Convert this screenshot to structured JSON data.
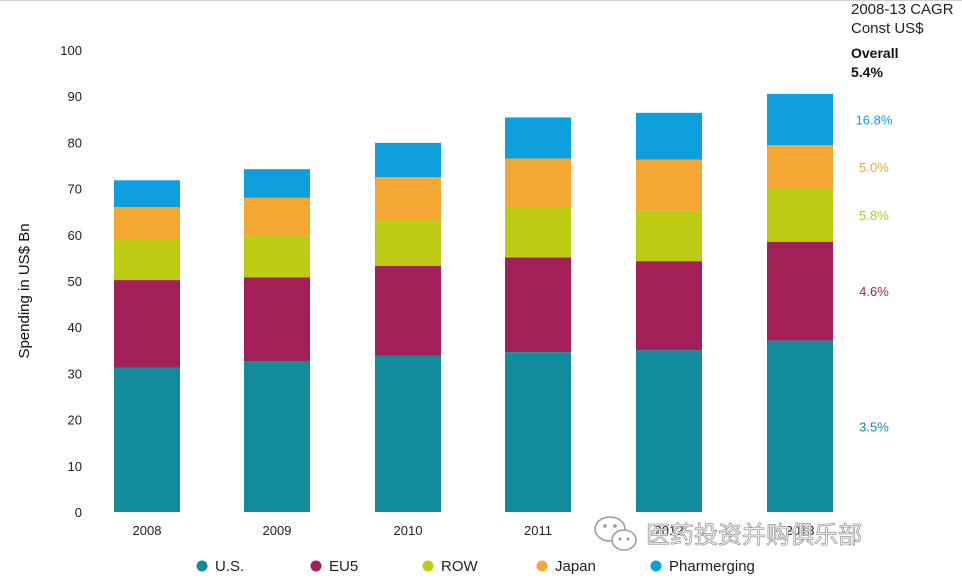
{
  "chart_data": {
    "type": "bar",
    "stacked": true,
    "categories": [
      "2008",
      "2009",
      "2010",
      "2011",
      "2012",
      "2013"
    ],
    "ylabel": "Spending in US$ Bn",
    "ylim": [
      0,
      100
    ],
    "yticks": [
      0,
      10,
      20,
      30,
      40,
      50,
      60,
      70,
      80,
      90,
      100
    ],
    "series": [
      {
        "name": "U.S.",
        "color": "#128c9c",
        "values": [
          31.2,
          32.6,
          33.8,
          34.6,
          35.0,
          37.1
        ],
        "cagr": "3.5%"
      },
      {
        "name": "EU5",
        "color": "#a31f57",
        "values": [
          19.0,
          18.2,
          19.5,
          20.5,
          19.3,
          21.4
        ],
        "cagr": "4.6%"
      },
      {
        "name": "ROW",
        "color": "#bccc13",
        "values": [
          8.7,
          8.9,
          9.8,
          10.9,
          10.9,
          11.5
        ],
        "cagr": "5.8%"
      },
      {
        "name": "Japan",
        "color": "#f5a733",
        "values": [
          7.1,
          8.3,
          9.4,
          10.5,
          11.1,
          9.4
        ],
        "cagr": "5.0%"
      },
      {
        "name": "Pharmerging",
        "color": "#0d9fdc",
        "values": [
          5.8,
          6.2,
          7.4,
          8.9,
          10.1,
          11.1
        ],
        "cagr": "16.8%"
      }
    ],
    "cagr_header": {
      "line1": "2008-13 CAGR",
      "line2": "Const US$",
      "overall_label": "Overall",
      "overall_value": "5.4%"
    },
    "legend_position": "bottom"
  },
  "watermark": {
    "text": "医药投资并购俱乐部",
    "icon": "wechat-icon"
  }
}
